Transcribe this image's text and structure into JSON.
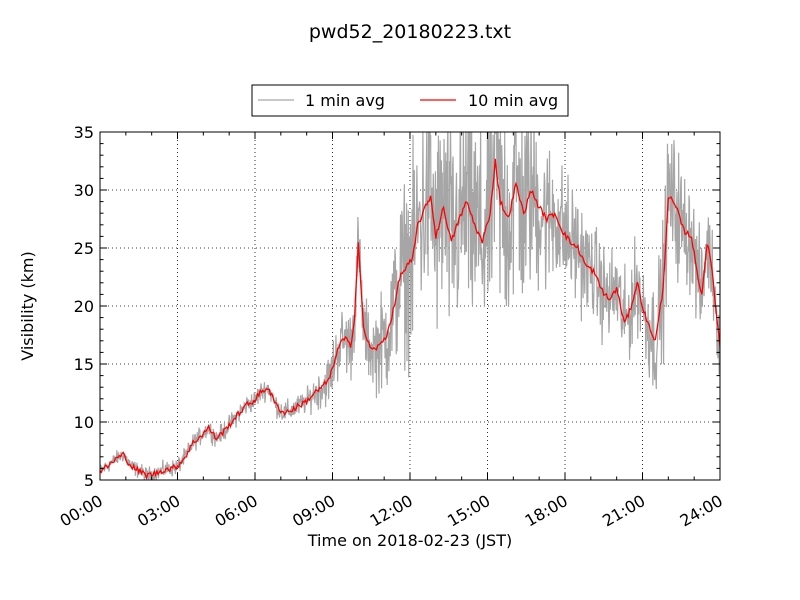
{
  "chart_data": {
    "type": "line",
    "title": "pwd52_20180223.txt",
    "xlabel": "Time on 2018-02-23 (JST)",
    "ylabel": "Visibility (km)",
    "xlim": [
      0,
      24
    ],
    "ylim": [
      5,
      35
    ],
    "grid": true,
    "legend_position": "top-center",
    "x_tick_labels": [
      "00:00",
      "03:00",
      "06:00",
      "09:00",
      "12:00",
      "15:00",
      "18:00",
      "21:00",
      "24:00"
    ],
    "y_tick_labels": [
      "5",
      "10",
      "15",
      "20",
      "25",
      "30",
      "35"
    ],
    "series": [
      {
        "name": "1 min avg",
        "color": "#a6a6a6",
        "noise_amplitude": [
          [
            0,
            0.3
          ],
          [
            5,
            0.4
          ],
          [
            8,
            0.5
          ],
          [
            9.5,
            1.5
          ],
          [
            10.5,
            1.5
          ],
          [
            11.5,
            3
          ],
          [
            12,
            4
          ],
          [
            14,
            5
          ],
          [
            16,
            5
          ],
          [
            17.5,
            3
          ],
          [
            19,
            2
          ],
          [
            21,
            2
          ],
          [
            22,
            3
          ],
          [
            24,
            1.5
          ]
        ]
      },
      {
        "name": "10 min avg",
        "color": "#ff0000",
        "x": [
          0,
          0.3,
          0.6,
          0.9,
          1.2,
          1.5,
          1.8,
          2.2,
          2.5,
          2.8,
          3.0,
          3.3,
          3.6,
          3.9,
          4.2,
          4.5,
          4.8,
          5.1,
          5.4,
          5.7,
          5.95,
          6.2,
          6.5,
          6.8,
          7.1,
          7.4,
          7.7,
          8.0,
          8.3,
          8.6,
          8.9,
          9.1,
          9.3,
          9.5,
          9.7,
          9.85,
          10.0,
          10.2,
          10.5,
          10.8,
          11.1,
          11.4,
          11.6,
          11.9,
          12.1,
          12.3,
          12.5,
          12.8,
          13.0,
          13.3,
          13.6,
          13.9,
          14.2,
          14.5,
          14.8,
          15.1,
          15.3,
          15.5,
          15.8,
          16.1,
          16.4,
          16.7,
          17.0,
          17.3,
          17.6,
          17.9,
          18.2,
          18.5,
          18.8,
          19.1,
          19.4,
          19.7,
          20.0,
          20.3,
          20.5,
          20.8,
          21.0,
          21.2,
          21.5,
          21.8,
          22.0,
          22.3,
          22.6,
          22.9,
          23.1,
          23.3,
          23.5,
          23.7,
          23.9,
          24.0
        ],
        "values": [
          5.8,
          6.2,
          6.8,
          7.2,
          6.2,
          5.8,
          5.4,
          5.6,
          5.9,
          6.0,
          6.2,
          7.0,
          8.2,
          8.8,
          9.5,
          8.6,
          9.2,
          10.0,
          10.8,
          11.5,
          11.8,
          12.5,
          13.0,
          11.5,
          10.8,
          11.0,
          11.4,
          11.8,
          12.5,
          13.0,
          13.8,
          15.5,
          16.8,
          17.2,
          16.5,
          19.0,
          25.5,
          18.0,
          16.2,
          16.5,
          17.5,
          20.0,
          22.5,
          23.5,
          24.0,
          27.0,
          28.0,
          29.5,
          26.0,
          28.5,
          25.5,
          27.5,
          29.0,
          27.0,
          25.5,
          28.0,
          32.5,
          29.0,
          27.5,
          30.5,
          28.0,
          30.0,
          28.5,
          27.5,
          28.0,
          26.5,
          25.5,
          25.0,
          23.5,
          23.0,
          21.5,
          20.5,
          21.5,
          18.5,
          19.5,
          22.0,
          20.0,
          18.5,
          17.0,
          21.5,
          29.5,
          28.5,
          26.5,
          26.0,
          23.0,
          21.0,
          25.5,
          23.0,
          18.5,
          16.5
        ]
      }
    ]
  }
}
